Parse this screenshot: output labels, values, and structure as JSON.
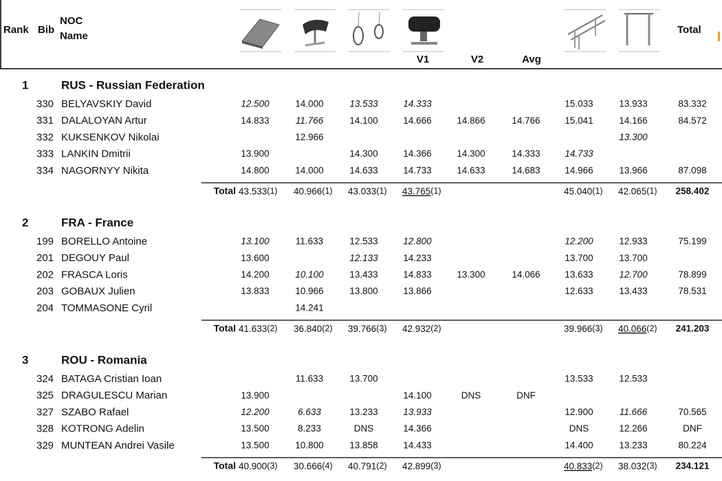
{
  "header": {
    "rank": "Rank",
    "bib": "Bib",
    "noc": "NOC",
    "name": "Name",
    "v1": "V1",
    "v2": "V2",
    "avg": "Avg",
    "total": "Total"
  },
  "teams": [
    {
      "rank": "1",
      "name": "RUS - Russian Federation",
      "athletes": [
        {
          "bib": "330",
          "name": "BELYAVSKIY David",
          "scores": [
            "12.500",
            "14.000",
            "13.533",
            "14.333",
            null,
            null,
            "15.033",
            "13.933",
            "83.332"
          ]
        },
        {
          "bib": "331",
          "name": "DALALOYAN Artur",
          "scores": [
            "14.833",
            "11.766",
            "14.100",
            "14.666",
            "14.866",
            "14.766",
            "15.041",
            "14.166",
            "84.572"
          ]
        },
        {
          "bib": "332",
          "name": "KUKSENKOV Nikolai",
          "scores": [
            null,
            "12.966",
            null,
            null,
            null,
            null,
            null,
            "13.300",
            null
          ]
        },
        {
          "bib": "333",
          "name": "LANKIN Dmitrii",
          "scores": [
            "13.900",
            null,
            "14.300",
            "14.366",
            "14.300",
            "14.333",
            "14.733",
            null,
            null
          ]
        },
        {
          "bib": "334",
          "name": "NAGORNYY Nikita",
          "scores": [
            "14.800",
            "14.000",
            "14.633",
            "14.733",
            "14.633",
            "14.683",
            "14.966",
            "13.966",
            "87.098"
          ]
        }
      ],
      "total_label": "Total",
      "totals": [
        {
          "score": "43.533",
          "rank": "(1)"
        },
        {
          "score": "40.966",
          "rank": "(1)"
        },
        {
          "score": "43.033",
          "rank": "(1)"
        },
        {
          "score": "43.765",
          "rank": "(1)"
        },
        {
          "score": "45.040",
          "rank": "(1)"
        },
        {
          "score": "42.065",
          "rank": "(1)"
        }
      ],
      "total": "258.402"
    },
    {
      "rank": "2",
      "name": "FRA - France",
      "athletes": [
        {
          "bib": "199",
          "name": "BORELLO Antoine",
          "scores": [
            "13.100",
            "11.633",
            "12.533",
            "12.800",
            null,
            null,
            "12.200",
            "12.933",
            "75.199"
          ]
        },
        {
          "bib": "201",
          "name": "DEGOUY Paul",
          "scores": [
            "13.600",
            null,
            "12.133",
            "14.233",
            null,
            null,
            "13.700",
            "13.700",
            null
          ]
        },
        {
          "bib": "202",
          "name": "FRASCA Loris",
          "scores": [
            "14.200",
            "10.100",
            "13.433",
            "14.833",
            "13.300",
            "14.066",
            "13.633",
            "12.700",
            "78.899"
          ]
        },
        {
          "bib": "203",
          "name": "GOBAUX Julien",
          "scores": [
            "13.833",
            "10.966",
            "13.800",
            "13.866",
            null,
            null,
            "12.633",
            "13.433",
            "78.531"
          ]
        },
        {
          "bib": "204",
          "name": "TOMMASONE Cyril",
          "scores": [
            null,
            "14.241",
            null,
            null,
            null,
            null,
            null,
            null,
            null
          ]
        }
      ],
      "total_label": "Total",
      "totals": [
        {
          "score": "41.633",
          "rank": "(2)"
        },
        {
          "score": "36.840",
          "rank": "(2)"
        },
        {
          "score": "39.766",
          "rank": "(3)"
        },
        {
          "score": "42.932",
          "rank": "(2)"
        },
        {
          "score": "39.966",
          "rank": "(3)"
        },
        {
          "score": "40.066",
          "rank": "(2)"
        }
      ],
      "total": "241.203"
    },
    {
      "rank": "3",
      "name": "ROU - Romania",
      "athletes": [
        {
          "bib": "324",
          "name": "BATAGA Cristian Ioan",
          "scores": [
            null,
            "11.633",
            "13.700",
            null,
            null,
            null,
            "13.533",
            "12.533",
            null
          ]
        },
        {
          "bib": "325",
          "name": "DRAGULESCU Marian",
          "scores": [
            "13.900",
            null,
            null,
            "14.100",
            "DNS",
            "DNF",
            null,
            null,
            null
          ]
        },
        {
          "bib": "327",
          "name": "SZABO Rafael",
          "scores": [
            "12.200",
            "6.633",
            "13.233",
            "13.933",
            null,
            null,
            "12.900",
            "11.666",
            "70.565"
          ]
        },
        {
          "bib": "328",
          "name": "KOTRONG Adelin",
          "scores": [
            "13.500",
            "8.233",
            "DNS",
            "14.366",
            null,
            null,
            "DNS",
            "12.266",
            "DNF"
          ]
        },
        {
          "bib": "329",
          "name": "MUNTEAN Andrei Vasile",
          "scores": [
            "13.500",
            "10.800",
            "13.858",
            "14.433",
            null,
            null,
            "14.400",
            "13.233",
            "80.224"
          ]
        }
      ],
      "total_label": "Total",
      "totals": [
        {
          "score": "40.900",
          "rank": "(3)"
        },
        {
          "score": "30.666",
          "rank": "(4)"
        },
        {
          "score": "40.791",
          "rank": "(2)"
        },
        {
          "score": "42.899",
          "rank": "(3)"
        },
        {
          "score": "40.833",
          "rank": "(2)"
        },
        {
          "score": "38.032",
          "rank": "(3)"
        }
      ],
      "total": "234.121"
    }
  ]
}
